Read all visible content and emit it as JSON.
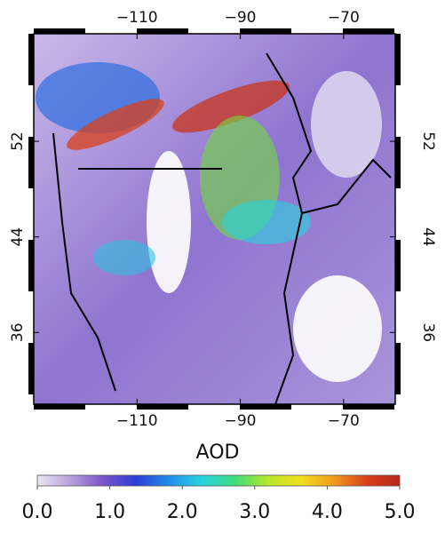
{
  "chart_data": {
    "type": "map",
    "xlim": [
      -130,
      -60
    ],
    "ylim": [
      30,
      61
    ],
    "xticks": [
      {
        "value": -110,
        "label": "−110"
      },
      {
        "value": -90,
        "label": "−90"
      },
      {
        "value": -70,
        "label": "−70"
      }
    ],
    "yticks": [
      52,
      44,
      36
    ],
    "colorbar": {
      "label": "AOD",
      "lim": [
        0,
        5
      ],
      "ticks": [
        {
          "value": 0,
          "label": "0.0"
        },
        {
          "value": 1,
          "label": "1.0"
        },
        {
          "value": 2,
          "label": "2.0"
        },
        {
          "value": 3,
          "label": "3.0"
        },
        {
          "value": 4,
          "label": "4.0"
        },
        {
          "value": 5,
          "label": "5.0"
        }
      ],
      "colors": [
        "#ece6f2",
        "#b7a0dc",
        "#7a55c8",
        "#2c3ed8",
        "#1f8fe8",
        "#27d3e0",
        "#3fdc7a",
        "#b6e82a",
        "#f2e020",
        "#f29a1c",
        "#d8401a",
        "#b8261a"
      ]
    }
  }
}
